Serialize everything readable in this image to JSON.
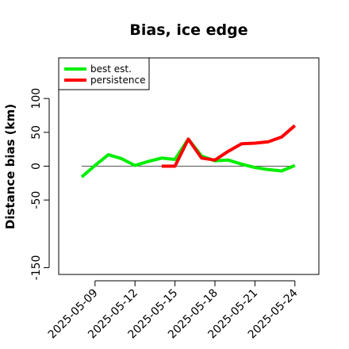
{
  "chart_data": {
    "type": "line",
    "title": "Bias, ice edge",
    "xlabel": "",
    "ylabel": "Distance bias (km)",
    "x": [
      "2025-05-08",
      "2025-05-09",
      "2025-05-10",
      "2025-05-11",
      "2025-05-12",
      "2025-05-13",
      "2025-05-14",
      "2025-05-15",
      "2025-05-16",
      "2025-05-17",
      "2025-05-18",
      "2025-05-19",
      "2025-05-20",
      "2025-05-21",
      "2025-05-22",
      "2025-05-23",
      "2025-05-24"
    ],
    "x_ticks": [
      "2025-05-09",
      "2025-05-12",
      "2025-05-15",
      "2025-05-18",
      "2025-05-21",
      "2025-05-24"
    ],
    "y_ticks": [
      -150,
      -50,
      0,
      50,
      100
    ],
    "ylim": [
      -160,
      160
    ],
    "reference_line": 0,
    "series": [
      {
        "name": "best est.",
        "color": "#00ee00",
        "values": [
          -16,
          1,
          17,
          11,
          1,
          7,
          12,
          10,
          40,
          15,
          8,
          9,
          3,
          -2,
          -5,
          -7,
          1
        ]
      },
      {
        "name": "persistence",
        "color": "#ff0000",
        "values": [
          null,
          null,
          null,
          null,
          null,
          null,
          0,
          0,
          40,
          12,
          9,
          22,
          33,
          34,
          36,
          43,
          60
        ]
      }
    ],
    "legend_position": "top-left",
    "grid": false
  }
}
